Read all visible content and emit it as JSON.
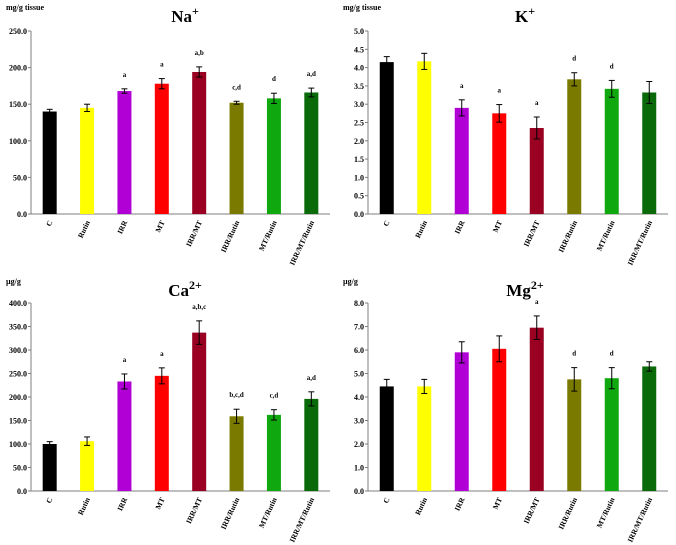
{
  "chart_data": [
    {
      "type": "bar",
      "title": "Na+",
      "title_base": "Na",
      "title_sup": "+",
      "ylabel": "mg/g tissue",
      "ylim": [
        0,
        250
      ],
      "ytick_step": 50,
      "ytick_labels": [
        "0.0",
        "50.0",
        "100.0",
        "150.0",
        "200.0",
        "250.0"
      ],
      "categories": [
        "C",
        "Rutin",
        "IRR",
        "MT",
        "IRR/MT",
        "IRR/Rutin",
        "MT/Rutin",
        "IRR/MT/Rutin"
      ],
      "values": [
        140,
        145,
        168,
        178,
        194,
        152,
        158,
        166
      ],
      "errors": [
        3,
        5,
        3,
        7,
        7,
        2,
        7,
        6
      ],
      "significance": [
        "",
        "",
        "a",
        "a",
        "a,b",
        "c,d",
        "d",
        "a,d"
      ],
      "colors": [
        "#000000",
        "#ffff00",
        "#b000d6",
        "#ff0000",
        "#990022",
        "#7a7a00",
        "#0fa80f",
        "#0a6a0a"
      ]
    },
    {
      "type": "bar",
      "title": "K+",
      "title_base": "K",
      "title_sup": "+",
      "ylabel": "mg/g tissue",
      "ylim": [
        0,
        5
      ],
      "ytick_step": 0.5,
      "ytick_labels": [
        "0.0",
        "0.5",
        "1.0",
        "1.5",
        "2.0",
        "2.5",
        "3.0",
        "3.5",
        "4.0",
        "4.5",
        "5.0"
      ],
      "categories": [
        "C",
        "Rutin",
        "IRR",
        "MT",
        "IRR/MT",
        "IRR/Rutin",
        "MT/Rutin",
        "IRR/MT/Rutin"
      ],
      "values": [
        4.15,
        4.17,
        2.9,
        2.75,
        2.35,
        3.68,
        3.42,
        3.32
      ],
      "errors": [
        0.15,
        0.22,
        0.22,
        0.24,
        0.3,
        0.18,
        0.23,
        0.3
      ],
      "significance": [
        "",
        "",
        "a",
        "a",
        "a",
        "d",
        "d",
        ""
      ],
      "colors": [
        "#000000",
        "#ffff00",
        "#b000d6",
        "#ff0000",
        "#990022",
        "#7a7a00",
        "#0fa80f",
        "#0a6a0a"
      ]
    },
    {
      "type": "bar",
      "title": "Ca2+",
      "title_base": "Ca",
      "title_sup": "2+",
      "ylabel": "µg/g",
      "ylim": [
        0,
        400
      ],
      "ytick_step": 50,
      "ytick_labels": [
        "0.0",
        "50.0",
        "100.0",
        "150.0",
        "200.0",
        "250.0",
        "300.0",
        "350.0",
        "400.0"
      ],
      "categories": [
        "C",
        "Rutin",
        "IRR",
        "MT",
        "IRR/MT",
        "IRR/Rutin",
        "MT/Rutin",
        "IRR/MT/Rutin"
      ],
      "values": [
        100,
        106,
        233,
        245,
        337,
        159,
        162,
        196
      ],
      "errors": [
        5,
        9,
        16,
        17,
        25,
        15,
        11,
        15
      ],
      "significance": [
        "",
        "",
        "a",
        "a",
        "a,b,c",
        "b,c,d",
        "c,d",
        "a,d"
      ],
      "colors": [
        "#000000",
        "#ffff00",
        "#b000d6",
        "#ff0000",
        "#990022",
        "#7a7a00",
        "#0fa80f",
        "#0a6a0a"
      ]
    },
    {
      "type": "bar",
      "title": "Mg2+",
      "title_base": "Mg",
      "title_sup": "2+",
      "ylabel": "µg/g",
      "ylim": [
        0,
        8
      ],
      "ytick_step": 1,
      "ytick_labels": [
        "0.0",
        "1.0",
        "2.0",
        "3.0",
        "4.0",
        "5.0",
        "6.0",
        "7.0",
        "8.0"
      ],
      "categories": [
        "C",
        "Rutin",
        "IRR",
        "MT",
        "IRR/MT",
        "IRR/Rutin",
        "MT/Rutin",
        "IRR/MT/Rutin"
      ],
      "values": [
        4.45,
        4.45,
        5.9,
        6.05,
        6.95,
        4.75,
        4.8,
        5.3
      ],
      "errors": [
        0.3,
        0.3,
        0.45,
        0.55,
        0.5,
        0.5,
        0.45,
        0.2
      ],
      "significance": [
        "",
        "",
        "",
        "",
        "a",
        "d",
        "d",
        ""
      ],
      "colors": [
        "#000000",
        "#ffff00",
        "#b000d6",
        "#ff0000",
        "#990022",
        "#7a7a00",
        "#0fa80f",
        "#0a6a0a"
      ]
    }
  ]
}
